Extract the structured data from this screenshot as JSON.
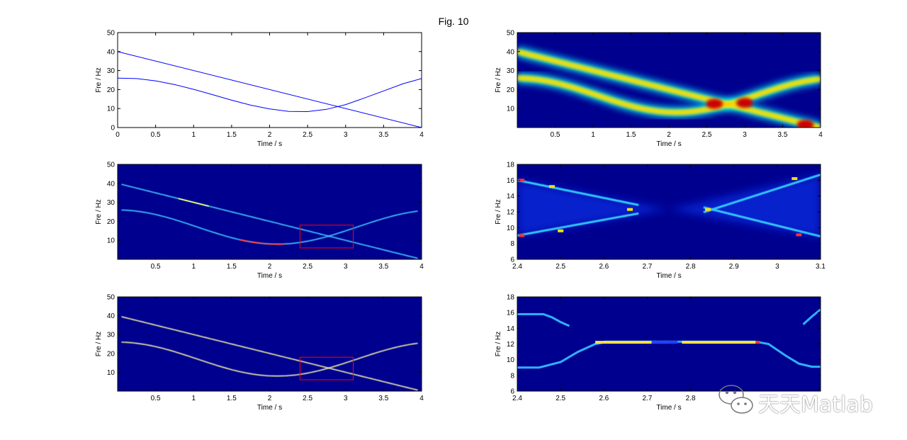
{
  "figure": {
    "title": "Fig. 10"
  },
  "watermark": {
    "text": "天天Matlab"
  },
  "chart_data": [
    {
      "type": "line",
      "xlabel": "Time / s",
      "ylabel": "Fre / Hz",
      "xlim": [
        0,
        4
      ],
      "ylim": [
        0,
        50
      ],
      "xticks": [
        "0",
        "0.5",
        "1",
        "1.5",
        "2",
        "2.5",
        "3",
        "3.5",
        "4"
      ],
      "yticks": [
        "0",
        "10",
        "20",
        "30",
        "40",
        "50"
      ],
      "series": [
        {
          "values": [
            [
              0,
              40
            ],
            [
              4,
              0
            ]
          ],
          "color": "#0000ff"
        },
        {
          "values": [
            [
              0,
              26
            ],
            [
              0.25,
              25.8
            ],
            [
              0.5,
              24.6
            ],
            [
              0.75,
              22.6
            ],
            [
              1,
              20.1
            ],
            [
              1.25,
              17.3
            ],
            [
              1.5,
              14.4
            ],
            [
              1.75,
              11.8
            ],
            [
              2,
              9.8
            ],
            [
              2.25,
              8.5
            ],
            [
              2.5,
              8.4
            ],
            [
              2.75,
              9.6
            ],
            [
              3,
              12.1
            ],
            [
              3.25,
              15.6
            ],
            [
              3.5,
              19.3
            ],
            [
              3.75,
              23.0
            ],
            [
              4,
              25.8
            ]
          ],
          "color": "#0000ff"
        }
      ]
    },
    {
      "type": "heatmap",
      "xlabel": "Time / s",
      "ylabel": "Fre / Hz",
      "xlim": [
        0,
        4
      ],
      "ylim": [
        0,
        50
      ],
      "xticks": [
        "0.5",
        "1",
        "1.5",
        "2",
        "2.5",
        "3",
        "3.5",
        "4"
      ],
      "yticks": [
        "10",
        "20",
        "30",
        "40",
        "50"
      ],
      "ridges": [
        "linear 40→0 Hz",
        "sinusoidal 26→8→26 Hz"
      ],
      "colormap": "jet"
    },
    {
      "type": "heatmap",
      "xlabel": "Time / s",
      "ylabel": "Fre / Hz",
      "xlim": [
        0,
        4
      ],
      "ylim": [
        0,
        50
      ],
      "xticks": [
        "0.5",
        "1",
        "1.5",
        "2",
        "2.5",
        "3",
        "3.5",
        "4"
      ],
      "yticks": [
        "10",
        "20",
        "30",
        "40",
        "50"
      ],
      "zoom_box": {
        "x": [
          2.4,
          3.1
        ],
        "y": [
          6,
          18
        ],
        "color": "#ff0000"
      },
      "colormap": "jet"
    },
    {
      "type": "heatmap",
      "xlabel": "Time / s",
      "ylabel": "Fre / Hz",
      "xlim": [
        2.4,
        3.1
      ],
      "ylim": [
        6,
        18
      ],
      "xticks": [
        "2.4",
        "2.5",
        "2.6",
        "2.7",
        "2.8",
        "2.9",
        "3",
        "3.1"
      ],
      "yticks": [
        "6",
        "8",
        "10",
        "12",
        "14",
        "16",
        "18"
      ],
      "colormap": "jet"
    },
    {
      "type": "heatmap",
      "xlabel": "Time / s",
      "ylabel": "Fre / Hz",
      "xlim": [
        0,
        4
      ],
      "ylim": [
        0,
        50
      ],
      "xticks": [
        "0.5",
        "1",
        "1.5",
        "2",
        "2.5",
        "3",
        "3.5",
        "4"
      ],
      "yticks": [
        "10",
        "20",
        "30",
        "40",
        "50"
      ],
      "zoom_box": {
        "x": [
          2.4,
          3.1
        ],
        "y": [
          6,
          18
        ],
        "color": "#ff0000"
      },
      "colormap": "jet"
    },
    {
      "type": "heatmap",
      "xlabel": "Time / s",
      "ylabel": "Fre / Hz",
      "xlim": [
        2.4,
        3.1
      ],
      "ylim": [
        6,
        18
      ],
      "xticks": [
        "2.4",
        "2.5",
        "2.6",
        "2.7",
        "2.8"
      ],
      "yticks": [
        "6",
        "8",
        "10",
        "12",
        "14",
        "16",
        "18"
      ],
      "colormap": "jet"
    }
  ]
}
